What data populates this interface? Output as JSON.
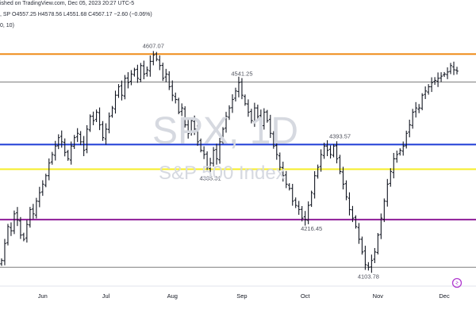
{
  "header": {
    "line1": "ished on TradingView.com, Dec 05, 2023 20:27 UTC-5",
    "line2": ", SP  O4557.25  H4578.56  L4551.68  C4567.17  −2.60 (−0.06%)",
    "line3": "0, 10)"
  },
  "watermark": {
    "symbol": "SPX, 1D",
    "name": "S&P 500 Index"
  },
  "icons": {
    "brand": "tradingview-logo-icon"
  },
  "colors": {
    "orange": "#ef8c1a",
    "blue": "#1e3cd6",
    "yellow": "#f6ee27",
    "purple": "#8e1c98",
    "gray": "#7e7e7e",
    "bar": "#131722"
  },
  "chart_data": {
    "type": "ohlc",
    "price_range": [
      4080,
      4660
    ],
    "x_ticks": [
      {
        "label": "Jun",
        "index": 13
      },
      {
        "label": "Jul",
        "index": 33
      },
      {
        "label": "Aug",
        "index": 54
      },
      {
        "label": "Sep",
        "index": 76
      },
      {
        "label": "Oct",
        "index": 96
      },
      {
        "label": "Nov",
        "index": 119
      },
      {
        "label": "Dec",
        "index": 140
      }
    ],
    "horizontal_lines": [
      {
        "price": 4607.07,
        "color": "#ef8c1a"
      },
      {
        "price": 4541.25,
        "color": "#7e7e7e"
      },
      {
        "price": 4393.57,
        "color": "#1e3cd6"
      },
      {
        "price": 4335.31,
        "color": "#f6ee27"
      },
      {
        "price": 4216.45,
        "color": "#8e1c98"
      },
      {
        "price": 4103.78,
        "color": "#7e7e7e"
      }
    ],
    "price_annotations": [
      {
        "label": "4607.07",
        "index": 48,
        "price": 4607.07,
        "position": "above"
      },
      {
        "label": "4541.25",
        "index": 76,
        "price": 4541.25,
        "position": "above"
      },
      {
        "label": "4335.31",
        "index": 66,
        "price": 4335.31,
        "position": "below"
      },
      {
        "label": "4393.57",
        "index": 107,
        "price": 4393.57,
        "position": "above"
      },
      {
        "label": "4216.45",
        "index": 98,
        "price": 4216.45,
        "position": "below"
      },
      {
        "label": "4103.78",
        "index": 116,
        "price": 4103.78,
        "position": "below"
      }
    ],
    "closes": [
      4120,
      4160,
      4200,
      4190,
      4230,
      4215,
      4180,
      4170,
      4205,
      4240,
      4230,
      4260,
      4280,
      4300,
      4320,
      4350,
      4370,
      4390,
      4410,
      4400,
      4375,
      4360,
      4390,
      4410,
      4420,
      4400,
      4380,
      4430,
      4460,
      4450,
      4470,
      4440,
      4410,
      4430,
      4460,
      4480,
      4510,
      4530,
      4510,
      4550,
      4540,
      4560,
      4570,
      4550,
      4580,
      4560,
      4570,
      4590,
      4605,
      4595,
      4580,
      4550,
      4560,
      4530,
      4510,
      4500,
      4470,
      4480,
      4440,
      4420,
      4450,
      4430,
      4400,
      4380,
      4370,
      4340,
      4350,
      4380,
      4360,
      4400,
      4430,
      4460,
      4480,
      4500,
      4520,
      4540,
      4510,
      4490,
      4470,
      4450,
      4480,
      4460,
      4440,
      4470,
      4450,
      4420,
      4390,
      4370,
      4340,
      4320,
      4300,
      4290,
      4260,
      4250,
      4240,
      4220,
      4216,
      4250,
      4280,
      4320,
      4340,
      4370,
      4390,
      4380,
      4370,
      4390,
      4360,
      4330,
      4300,
      4270,
      4240,
      4220,
      4200,
      4170,
      4140,
      4110,
      4104,
      4120,
      4140,
      4180,
      4220,
      4260,
      4300,
      4330,
      4360,
      4370,
      4380,
      4390,
      4420,
      4440,
      4470,
      4480,
      4480,
      4510,
      4520,
      4530,
      4540,
      4545,
      4550,
      4555,
      4560,
      4565,
      4580,
      4570,
      4567
    ]
  }
}
